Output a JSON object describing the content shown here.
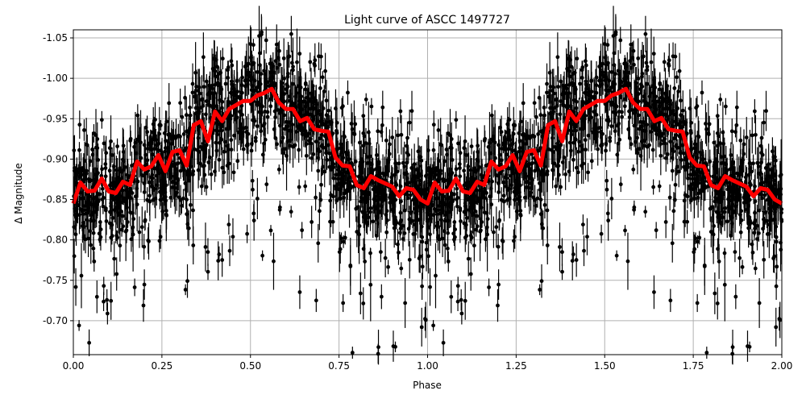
{
  "chart_data": {
    "type": "scatter",
    "title": "Light curve of ASCC 1497727",
    "xlabel": "Phase",
    "ylabel": "Δ Magnitude",
    "xlim": [
      0,
      2
    ],
    "ylim": [
      -1.06,
      -0.658
    ],
    "y_inverted": true,
    "grid": true,
    "xticks": [
      "0.00",
      "0.25",
      "0.50",
      "0.75",
      "1.00",
      "1.25",
      "1.50",
      "1.75",
      "2.00"
    ],
    "yticks": [
      "-1.05",
      "-1.00",
      "-0.95",
      "-0.90",
      "-0.85",
      "-0.80",
      "-0.75",
      "-0.70"
    ],
    "colors": {
      "points": "#000000",
      "binned_curve": "#ff0000",
      "grid": "#b0b0b0"
    },
    "binned_curve": {
      "phase": [
        0.0,
        0.02,
        0.04,
        0.06,
        0.08,
        0.1,
        0.12,
        0.14,
        0.16,
        0.18,
        0.2,
        0.22,
        0.24,
        0.26,
        0.28,
        0.3,
        0.32,
        0.34,
        0.36,
        0.38,
        0.4,
        0.42,
        0.44,
        0.46,
        0.48,
        0.5,
        0.52,
        0.54,
        0.56,
        0.58,
        0.6,
        0.62,
        0.64,
        0.66,
        0.68,
        0.7,
        0.72,
        0.74,
        0.76,
        0.78,
        0.8,
        0.82,
        0.84,
        0.86,
        0.88,
        0.9,
        0.92,
        0.94,
        0.96,
        0.98
      ],
      "magnitude": [
        -0.845,
        -0.871,
        -0.86,
        -0.861,
        -0.876,
        -0.86,
        -0.858,
        -0.872,
        -0.868,
        -0.897,
        -0.887,
        -0.891,
        -0.905,
        -0.885,
        -0.909,
        -0.911,
        -0.892,
        -0.942,
        -0.947,
        -0.922,
        -0.959,
        -0.947,
        -0.962,
        -0.967,
        -0.972,
        -0.972,
        -0.979,
        -0.982,
        -0.987,
        -0.97,
        -0.962,
        -0.962,
        -0.947,
        -0.951,
        -0.937,
        -0.935,
        -0.934,
        -0.902,
        -0.892,
        -0.891,
        -0.868,
        -0.864,
        -0.879,
        -0.874,
        -0.87,
        -0.866,
        -0.854,
        -0.864,
        -0.862,
        -0.85
      ],
      "repeats_every_phase": 1
    },
    "points_style": "black dots with vertical error bars, phase-folded and repeated over two cycles"
  }
}
